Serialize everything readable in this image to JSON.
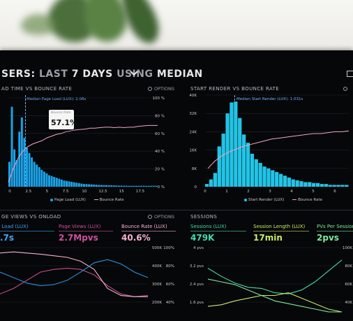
{
  "header": {
    "prefix": "SERS:",
    "last": "LAST",
    "days": "7 DAYS",
    "using": "USING",
    "median": "MEDIAN",
    "chevron_icon": "chevron-down-icon"
  },
  "panel_top_left": {
    "title": "AD TIME VS BOUNCE RATE",
    "options": "OPTIONS",
    "median_tag": "Median Page Load (LUX): 2.06s",
    "tooltip_label": "Bounce Rate",
    "tooltip_value": "57.1%",
    "legend_bar": "Page Load (LUX)",
    "legend_line": "Bounce Rate",
    "bar_color": "#1aa3e8",
    "line_color": "#f5a3c7"
  },
  "panel_top_right": {
    "title": "START RENDER VS BOUNCE RATE",
    "median_tag": "Median Start Render (LUX): 1.031s",
    "legend_bar": "Start Render (LUX)",
    "legend_line": "Bounce Rate",
    "bar_color": "#22c4e6"
  },
  "panel_bottom_left": {
    "title": "GE VIEWS VS ONLOAD",
    "options": "OPTIONS",
    "metrics": [
      {
        "label": "e Load (LUX)",
        "value": ".7s",
        "color": "#3aa6ff"
      },
      {
        "label": "Page Views (LUX)",
        "value": "2.7Mpvs",
        "color": "#d04ea0"
      },
      {
        "label": "Bounce Rate (LUX)",
        "value": "40.6%",
        "color": "#f3b3d2"
      }
    ]
  },
  "panel_bottom_right": {
    "title": "SESSIONS",
    "metrics": [
      {
        "label": "Sessions (LUX)",
        "value": "479K",
        "color": "#43dca8"
      },
      {
        "label": "Session Length (LUX)",
        "value": "17min",
        "color": "#c8ea6a"
      },
      {
        "label": "PVs Per Session",
        "value": "2pvs",
        "color": "#7dea9b"
      }
    ]
  },
  "chart_data": [
    {
      "type": "bar",
      "x_ticks": [
        "0",
        "2.5",
        "5",
        "7.5",
        "10",
        "12.5",
        "15",
        "17.5"
      ],
      "y_left_ticks": [],
      "y_right_ticks": [
        "0 %",
        "20 %",
        "40 %",
        "60 %",
        "80 %",
        "100 %"
      ],
      "bars": [
        0.28,
        0.9,
        0.42,
        0.3,
        0.62,
        0.78,
        0.55,
        0.44,
        0.38,
        0.33,
        0.28,
        0.25,
        0.22,
        0.19,
        0.17,
        0.15,
        0.13,
        0.12,
        0.11,
        0.1,
        0.09,
        0.08,
        0.07,
        0.065,
        0.06,
        0.055,
        0.05,
        0.045,
        0.04,
        0.035,
        0.03,
        0.03,
        0.028,
        0.026,
        0.024,
        0.022,
        0.02,
        0.019,
        0.018,
        0.017,
        0.016,
        0.015,
        0.014,
        0.013,
        0.012,
        0.012,
        0.011,
        0.011,
        0.01,
        0.01,
        0.01,
        0.01,
        0.01,
        0.01,
        0.01,
        0.01,
        0.01,
        0.01,
        0.01,
        0.01
      ],
      "bounce_rate": [
        0.05,
        0.2,
        0.32,
        0.4,
        0.45,
        0.48,
        0.5,
        0.52,
        0.55,
        0.57,
        0.59,
        0.6,
        0.62,
        0.63,
        0.64,
        0.645,
        0.65,
        0.66,
        0.66,
        0.665,
        0.67,
        0.67,
        0.665,
        0.67,
        0.665,
        0.67,
        0.67,
        0.68,
        0.685,
        0.69,
        0.69,
        0.69
      ]
    },
    {
      "type": "bar",
      "x_ticks": [
        "0",
        "1",
        "2",
        "3",
        "4",
        "5",
        "6"
      ],
      "y_left_ticks": [
        "0",
        "8K",
        "16K",
        "24K",
        "32K",
        "40K"
      ],
      "bars": [
        0.03,
        0.08,
        0.15,
        0.44,
        0.58,
        0.8,
        0.92,
        0.93,
        0.75,
        0.57,
        0.48,
        0.36,
        0.3,
        0.26,
        0.22,
        0.2,
        0.18,
        0.16,
        0.14,
        0.12,
        0.1,
        0.08,
        0.07,
        0.06,
        0.05,
        0.05,
        0.04,
        0.04,
        0.03,
        0.03,
        0.02,
        0.02,
        0.02,
        0.02,
        0.02
      ],
      "bounce_rate": [
        0.2,
        0.28,
        0.34,
        0.38,
        0.41,
        0.44,
        0.46,
        0.48,
        0.5,
        0.52,
        0.53,
        0.54,
        0.55,
        0.56,
        0.57,
        0.58,
        0.58,
        0.59,
        0.6,
        0.6,
        0.61
      ]
    },
    {
      "type": "line",
      "y_right_ticks_a": [
        "500K",
        "400K",
        "300K",
        "200K"
      ],
      "y_right_ticks_b": [
        "100%",
        "80%",
        "60%",
        "40%"
      ],
      "series": [
        {
          "name": "Page Views (LUX)",
          "color": "#c94b8f",
          "values": [
            0.15,
            0.25,
            0.4,
            0.55,
            0.6,
            0.62,
            0.6,
            0.5,
            0.3,
            0.15,
            0.1,
            0.12
          ]
        },
        {
          "name": "Bounce Rate (LUX)",
          "color": "#f3b3d2",
          "values": [
            0.9,
            0.92,
            0.9,
            0.88,
            0.85,
            0.82,
            0.75,
            0.6,
            0.25,
            0.12,
            0.1,
            0.1
          ]
        },
        {
          "name": "Load (LUX)",
          "color": "#2d8fe0",
          "values": [
            0.55,
            0.45,
            0.35,
            0.3,
            0.32,
            0.4,
            0.55,
            0.72,
            0.78,
            0.7,
            0.55,
            0.45
          ]
        }
      ]
    },
    {
      "type": "line",
      "y_left_ticks": [
        "4 pvs",
        "3.2 pvs",
        "2.4 pvs",
        "1.6 pvs"
      ],
      "y_right_ticks": [
        "100K",
        "80K",
        "60K",
        "40K"
      ],
      "series": [
        {
          "name": "Sessions (LUX)",
          "color": "#43dca8",
          "values": [
            0.75,
            0.6,
            0.48,
            0.4,
            0.38,
            0.3,
            0.28,
            0.35,
            0.5,
            0.7,
            0.9
          ]
        },
        {
          "name": "Session Length (LUX)",
          "color": "#c8ea6a",
          "values": [
            0.05,
            0.08,
            0.15,
            0.2,
            0.25,
            0.25,
            0.3,
            0.2,
            0.1,
            0.0,
            -0.1
          ]
        },
        {
          "name": "PVs Per Session",
          "color": "#7dea9b",
          "values": [
            0.55,
            0.5,
            0.45,
            0.35,
            0.25,
            0.15,
            0.1,
            0.05,
            0.0,
            -0.05,
            -0.1
          ]
        }
      ]
    }
  ]
}
